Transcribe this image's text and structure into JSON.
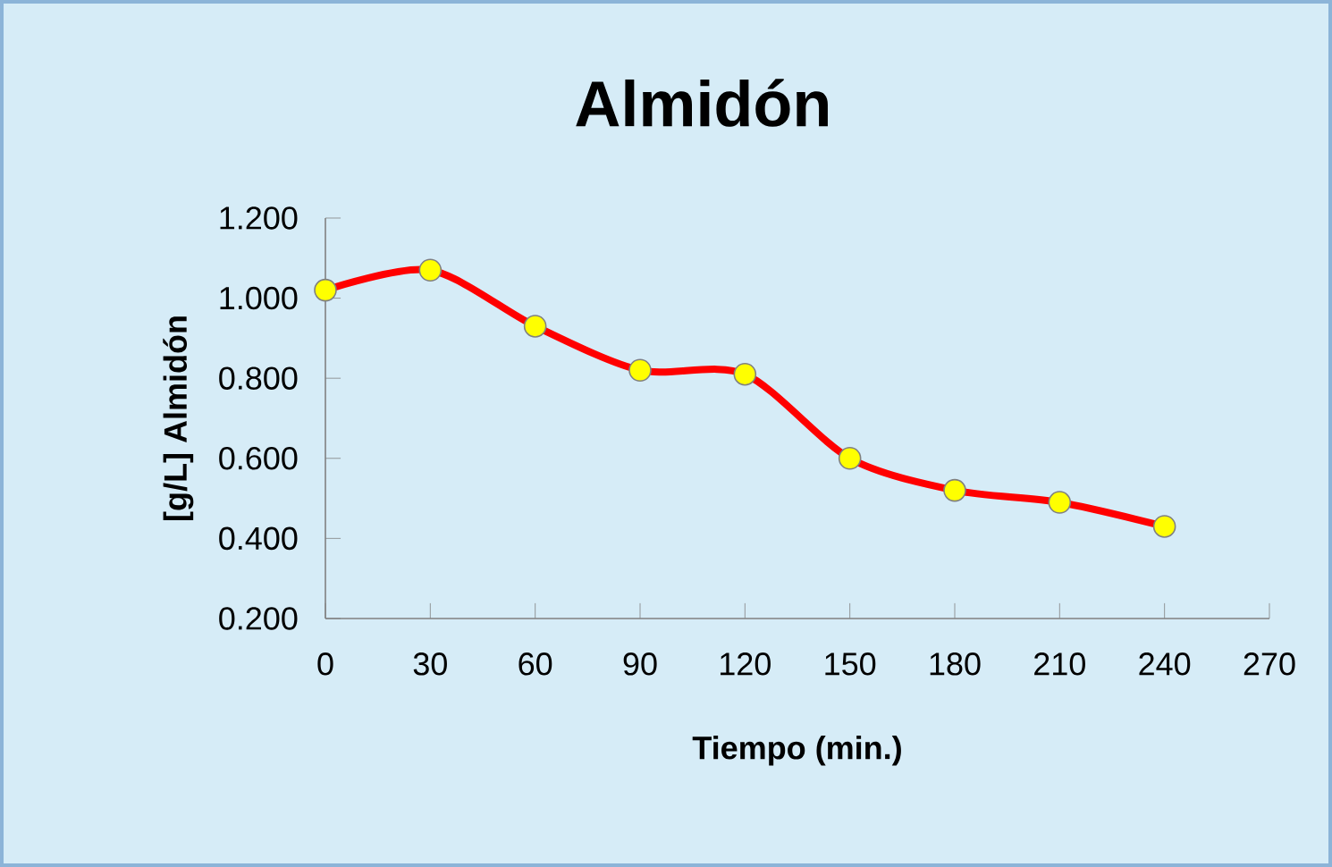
{
  "chart_data": {
    "type": "line",
    "title": "Almidón",
    "xlabel": "Tiempo (min.)",
    "ylabel": "[g/L] Almidón",
    "x": [
      0,
      30,
      60,
      90,
      120,
      150,
      180,
      210,
      240
    ],
    "series": [
      {
        "color": "#ff0000",
        "colors": [
          "#ffff00",
          "#ffff00",
          "#ffff00",
          "#ffff00",
          "#ffff00",
          "#ffff00",
          "#ffff00",
          "#ffff00",
          "#ffff00"
        ],
        "values": [
          1.02,
          1.07,
          0.93,
          0.82,
          0.81,
          0.6,
          0.52,
          0.49,
          0.43
        ]
      }
    ],
    "xlim": [
      0,
      270
    ],
    "xticks": [
      0,
      30,
      60,
      90,
      120,
      150,
      180,
      210,
      240,
      270
    ],
    "ylim": [
      0.2,
      1.2
    ],
    "yticks": [
      {
        "value": 0.2,
        "label": "0.200"
      },
      {
        "value": 0.4,
        "label": "0.400"
      },
      {
        "value": 0.6,
        "label": "0.600"
      },
      {
        "value": 0.8,
        "label": "0.800"
      },
      {
        "value": 1.0,
        "label": "1.000"
      },
      {
        "value": 1.2,
        "label": "1.200"
      }
    ],
    "grid": false,
    "marker": "circle",
    "line_style": "solid"
  }
}
